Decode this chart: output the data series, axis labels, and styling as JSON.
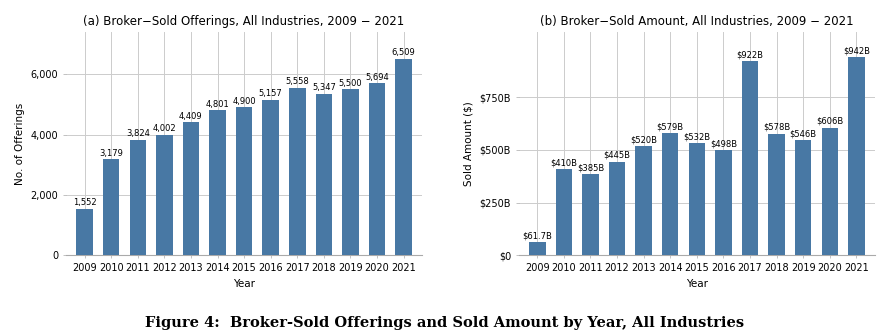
{
  "years": [
    2009,
    2010,
    2011,
    2012,
    2013,
    2014,
    2015,
    2016,
    2017,
    2018,
    2019,
    2020,
    2021
  ],
  "offerings": [
    1552,
    3179,
    3824,
    4002,
    4409,
    4801,
    4900,
    5157,
    5558,
    5347,
    5500,
    5694,
    6509
  ],
  "amounts_b": [
    61.7,
    410,
    385,
    445,
    520,
    579,
    532,
    498,
    922,
    578,
    546,
    606,
    942
  ],
  "amount_labels": [
    "$61.7B",
    "$410B",
    "$385B",
    "$445B",
    "$520B",
    "$579B",
    "$532B",
    "$498B",
    "$922B",
    "$578B",
    "$546B",
    "$606B",
    "$942B"
  ],
  "bar_color": "#4878a4",
  "title_a": "(a) Broker−Sold Offerings, All Industries, 2009 − 2021",
  "title_b": "(b) Broker−Sold Amount, All Industries, 2009 − 2021",
  "xlabel": "Year",
  "ylabel_a": "No. of Offerings",
  "ylabel_b": "Sold Amount ($)",
  "figure_caption": "Figure 4:  Broker-Sold Offerings and Sold Amount by Year, All Industries",
  "ylim_a": [
    0,
    7400
  ],
  "ylim_b": [
    0,
    1060
  ],
  "yticks_a": [
    0,
    2000,
    4000,
    6000
  ],
  "yticks_b": [
    0,
    250,
    500,
    750
  ],
  "ytick_labels_b": [
    "$0",
    "$250B",
    "$500B",
    "$750B"
  ],
  "bg_color": "#ffffff",
  "grid_color": "#cccccc",
  "title_fontsize": 8.5,
  "label_fontsize": 7.5,
  "tick_fontsize": 7,
  "bar_label_fontsize": 6,
  "caption_fontsize": 10.5
}
